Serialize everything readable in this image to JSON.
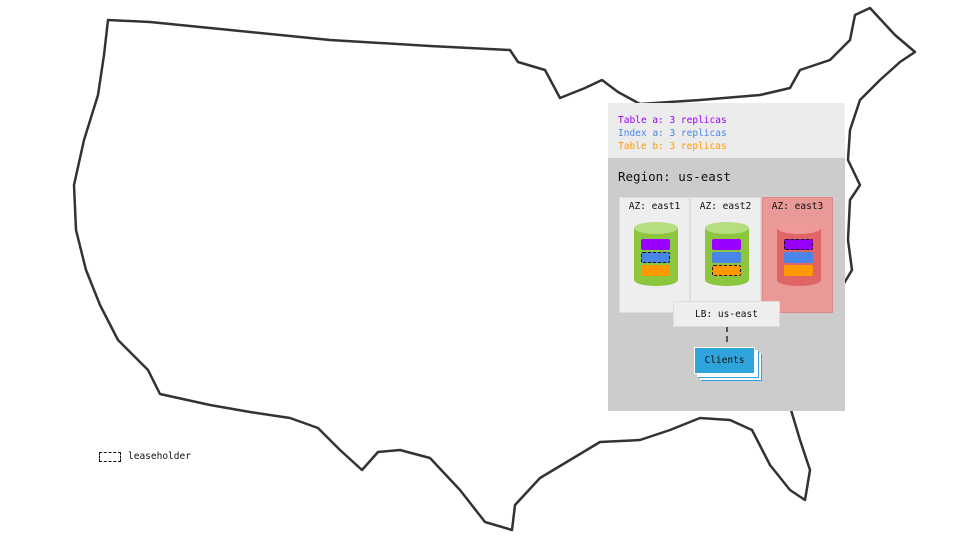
{
  "legend": {
    "items": [
      {
        "text": "Table a: 3 replicas",
        "color": "#9900ff"
      },
      {
        "text": "Index a: 3 replicas",
        "color": "#4a86e8"
      },
      {
        "text": "Table b: 3 replicas",
        "color": "#ff9900"
      }
    ]
  },
  "region": {
    "title": "Region: us-east",
    "azs": [
      {
        "label": "AZ: east1",
        "status": "up",
        "leaseholder": "Index a"
      },
      {
        "label": "AZ: east2",
        "status": "up",
        "leaseholder": "Table b"
      },
      {
        "label": "AZ: east3",
        "status": "down",
        "leaseholder": "Table a"
      }
    ],
    "load_balancer": "LB: us-east",
    "clients": "Clients"
  },
  "key": {
    "leaseholder": "leaseholder"
  },
  "colors": {
    "node_up": "#8cc63f",
    "node_down": "#e06666",
    "az_down_bg": "#ea9999",
    "clients": "#2fa3dc"
  }
}
